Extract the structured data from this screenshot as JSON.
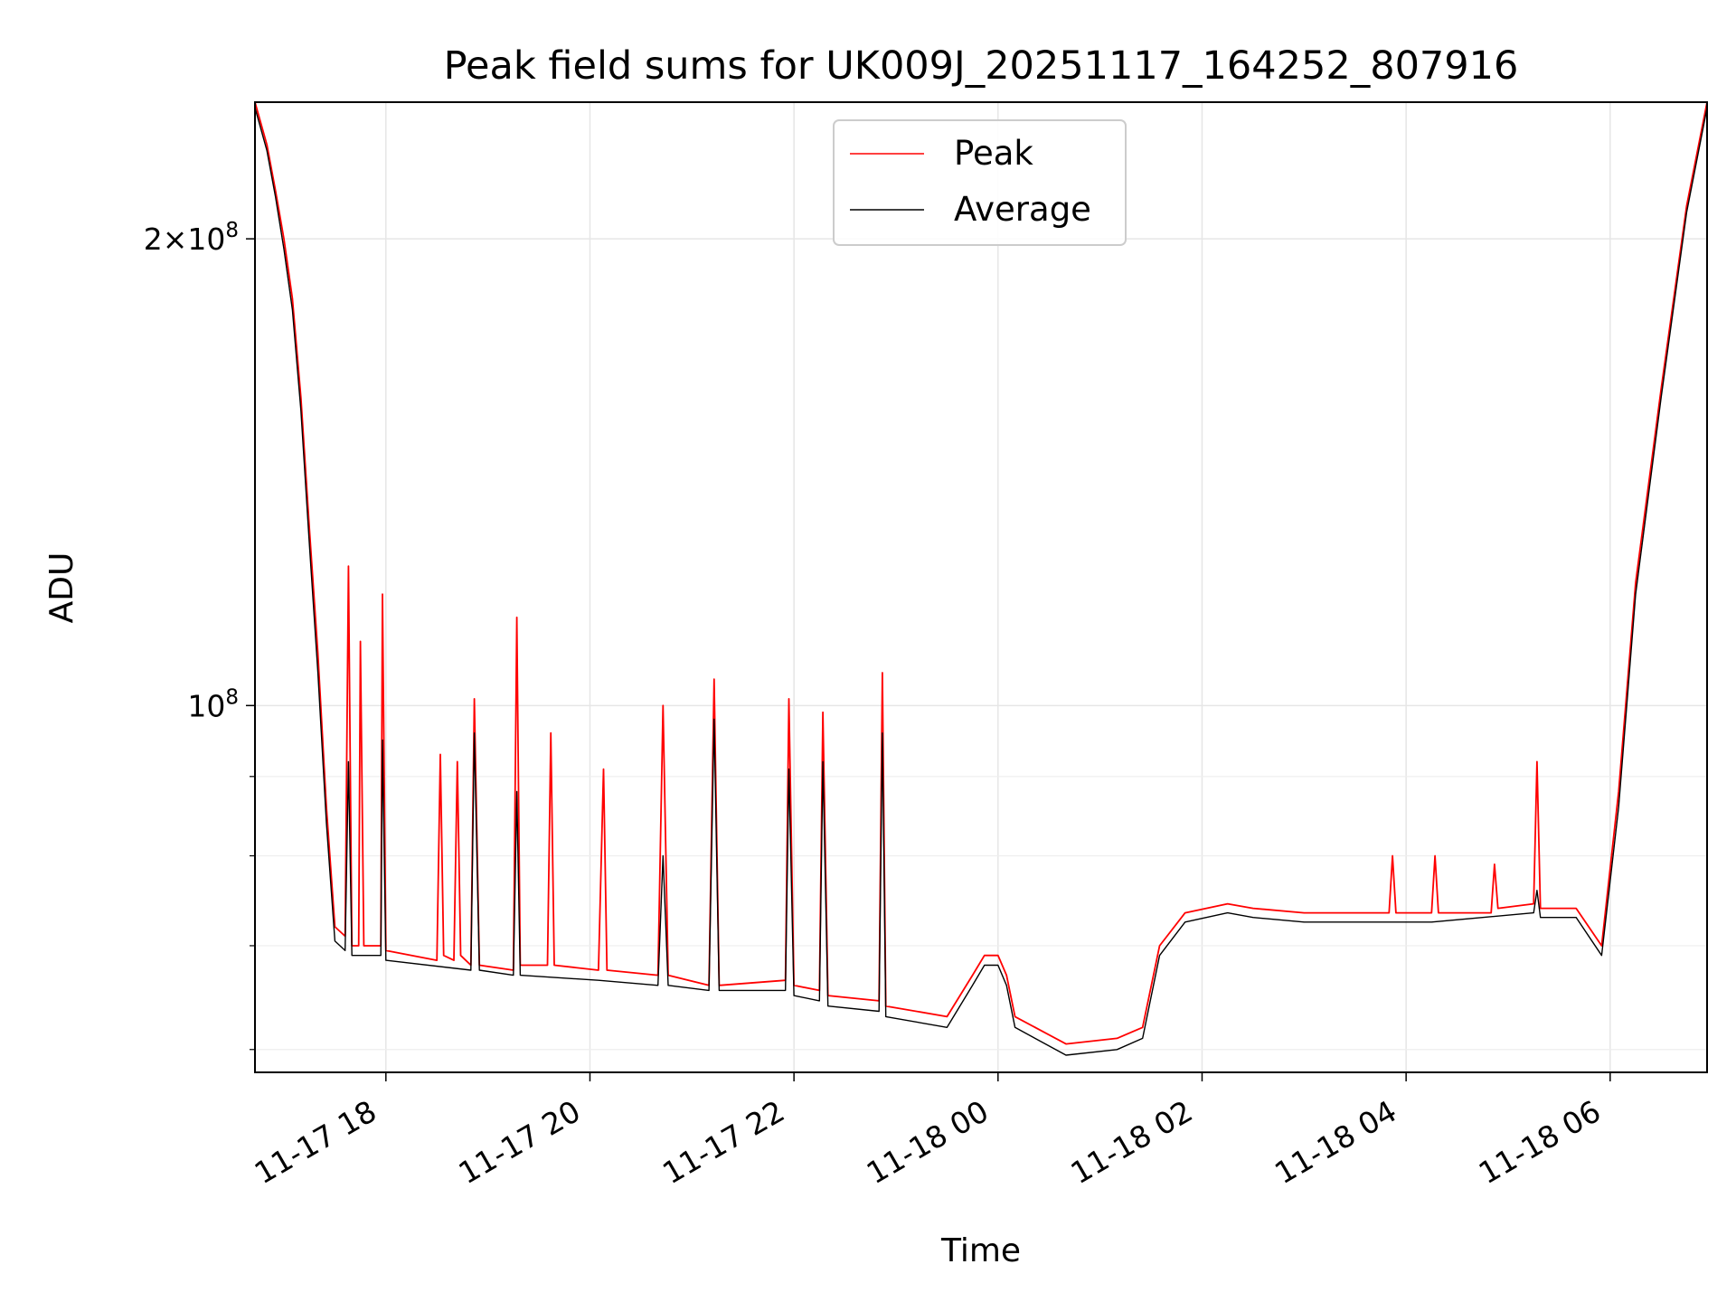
{
  "chart_data": {
    "type": "line",
    "title": "Peak field sums for UK009J_20251117_164252_807916",
    "xlabel": "Time",
    "ylabel": "ADU",
    "yscale": "log",
    "xlim": [
      "2025-11-17 16:43",
      "2025-11-18 06:57"
    ],
    "ylim": [
      58000000,
      245000000
    ],
    "grid": true,
    "legend_position": "top-center",
    "x_ticks": [
      {
        "t": "2025-11-17 18:00",
        "label": "11-17 18"
      },
      {
        "t": "2025-11-17 20:00",
        "label": "11-17 20"
      },
      {
        "t": "2025-11-17 22:00",
        "label": "11-17 22"
      },
      {
        "t": "2025-11-18 00:00",
        "label": "11-18 00"
      },
      {
        "t": "2025-11-18 02:00",
        "label": "11-18 02"
      },
      {
        "t": "2025-11-18 04:00",
        "label": "11-18 04"
      },
      {
        "t": "2025-11-18 06:00",
        "label": "11-18 06"
      }
    ],
    "y_major_ticks": [
      {
        "value": 200000000,
        "mantissa": "2×10",
        "exp": "8"
      },
      {
        "value": 100000000,
        "mantissa": "10",
        "exp": "8"
      }
    ],
    "y_minor_ticks": [
      60000000,
      70000000,
      80000000,
      90000000
    ],
    "series": [
      {
        "name": "Peak",
        "color": "#ff0000",
        "points": [
          [
            "2025-11-17 16:43",
            245000000
          ],
          [
            "2025-11-17 16:50",
            230000000
          ],
          [
            "2025-11-17 16:55",
            215000000
          ],
          [
            "2025-11-17 17:00",
            200000000
          ],
          [
            "2025-11-17 17:05",
            183000000
          ],
          [
            "2025-11-17 17:10",
            158000000
          ],
          [
            "2025-11-17 17:15",
            130000000
          ],
          [
            "2025-11-17 17:20",
            108000000
          ],
          [
            "2025-11-17 17:25",
            86000000
          ],
          [
            "2025-11-17 17:30",
            72000000
          ],
          [
            "2025-11-17 17:36",
            71000000
          ],
          [
            "2025-11-17 17:38",
            123000000
          ],
          [
            "2025-11-17 17:40",
            70000000
          ],
          [
            "2025-11-17 17:44",
            70000000
          ],
          [
            "2025-11-17 17:45",
            110000000
          ],
          [
            "2025-11-17 17:47",
            70000000
          ],
          [
            "2025-11-17 17:57",
            70000000
          ],
          [
            "2025-11-17 17:58",
            118000000
          ],
          [
            "2025-11-17 18:00",
            69500000
          ],
          [
            "2025-11-17 18:30",
            68500000
          ],
          [
            "2025-11-17 18:32",
            93000000
          ],
          [
            "2025-11-17 18:34",
            69000000
          ],
          [
            "2025-11-17 18:40",
            68500000
          ],
          [
            "2025-11-17 18:42",
            92000000
          ],
          [
            "2025-11-17 18:44",
            69000000
          ],
          [
            "2025-11-17 18:50",
            68000000
          ],
          [
            "2025-11-17 18:52",
            101000000
          ],
          [
            "2025-11-17 18:55",
            68000000
          ],
          [
            "2025-11-17 19:15",
            67500000
          ],
          [
            "2025-11-17 19:17",
            114000000
          ],
          [
            "2025-11-17 19:19",
            68000000
          ],
          [
            "2025-11-17 19:35",
            68000000
          ],
          [
            "2025-11-17 19:37",
            96000000
          ],
          [
            "2025-11-17 19:39",
            68000000
          ],
          [
            "2025-11-17 20:05",
            67500000
          ],
          [
            "2025-11-17 20:08",
            91000000
          ],
          [
            "2025-11-17 20:10",
            67500000
          ],
          [
            "2025-11-17 20:40",
            67000000
          ],
          [
            "2025-11-17 20:43",
            100000000
          ],
          [
            "2025-11-17 20:46",
            67000000
          ],
          [
            "2025-11-17 21:10",
            66000000
          ],
          [
            "2025-11-17 21:13",
            104000000
          ],
          [
            "2025-11-17 21:16",
            66000000
          ],
          [
            "2025-11-17 21:55",
            66500000
          ],
          [
            "2025-11-17 21:57",
            101000000
          ],
          [
            "2025-11-17 22:00",
            66000000
          ],
          [
            "2025-11-17 22:15",
            65500000
          ],
          [
            "2025-11-17 22:17",
            99000000
          ],
          [
            "2025-11-17 22:20",
            65000000
          ],
          [
            "2025-11-17 22:50",
            64500000
          ],
          [
            "2025-11-17 22:52",
            105000000
          ],
          [
            "2025-11-17 22:54",
            64000000
          ],
          [
            "2025-11-17 23:30",
            63000000
          ],
          [
            "2025-11-17 23:45",
            67000000
          ],
          [
            "2025-11-17 23:52",
            69000000
          ],
          [
            "2025-11-18 00:00",
            69000000
          ],
          [
            "2025-11-18 00:05",
            67000000
          ],
          [
            "2025-11-18 00:10",
            63000000
          ],
          [
            "2025-11-18 00:40",
            60500000
          ],
          [
            "2025-11-18 01:10",
            61000000
          ],
          [
            "2025-11-18 01:25",
            62000000
          ],
          [
            "2025-11-18 01:35",
            70000000
          ],
          [
            "2025-11-18 01:50",
            73500000
          ],
          [
            "2025-11-18 02:15",
            74500000
          ],
          [
            "2025-11-18 02:30",
            74000000
          ],
          [
            "2025-11-18 03:00",
            73500000
          ],
          [
            "2025-11-18 03:50",
            73500000
          ],
          [
            "2025-11-18 03:52",
            80000000
          ],
          [
            "2025-11-18 03:54",
            73500000
          ],
          [
            "2025-11-18 04:15",
            73500000
          ],
          [
            "2025-11-18 04:17",
            80000000
          ],
          [
            "2025-11-18 04:19",
            73500000
          ],
          [
            "2025-11-18 04:50",
            73500000
          ],
          [
            "2025-11-18 04:52",
            79000000
          ],
          [
            "2025-11-18 04:54",
            74000000
          ],
          [
            "2025-11-18 05:15",
            74500000
          ],
          [
            "2025-11-18 05:17",
            92000000
          ],
          [
            "2025-11-18 05:19",
            74000000
          ],
          [
            "2025-11-18 05:40",
            74000000
          ],
          [
            "2025-11-18 05:55",
            70000000
          ],
          [
            "2025-11-18 06:05",
            88000000
          ],
          [
            "2025-11-18 06:15",
            120000000
          ],
          [
            "2025-11-18 06:30",
            160000000
          ],
          [
            "2025-11-18 06:45",
            210000000
          ],
          [
            "2025-11-18 06:57",
            245000000
          ]
        ]
      },
      {
        "name": "Average",
        "color": "#000000",
        "points": [
          [
            "2025-11-17 16:43",
            243000000
          ],
          [
            "2025-11-17 16:50",
            228000000
          ],
          [
            "2025-11-17 16:55",
            213000000
          ],
          [
            "2025-11-17 17:00",
            197000000
          ],
          [
            "2025-11-17 17:05",
            180000000
          ],
          [
            "2025-11-17 17:10",
            155000000
          ],
          [
            "2025-11-17 17:15",
            127000000
          ],
          [
            "2025-11-17 17:20",
            105000000
          ],
          [
            "2025-11-17 17:25",
            84000000
          ],
          [
            "2025-11-17 17:30",
            70500000
          ],
          [
            "2025-11-17 17:36",
            69500000
          ],
          [
            "2025-11-17 17:38",
            92000000
          ],
          [
            "2025-11-17 17:40",
            69000000
          ],
          [
            "2025-11-17 17:57",
            69000000
          ],
          [
            "2025-11-17 17:58",
            95000000
          ],
          [
            "2025-11-17 18:00",
            68500000
          ],
          [
            "2025-11-17 18:50",
            67500000
          ],
          [
            "2025-11-17 18:52",
            96000000
          ],
          [
            "2025-11-17 18:55",
            67500000
          ],
          [
            "2025-11-17 19:15",
            67000000
          ],
          [
            "2025-11-17 19:17",
            88000000
          ],
          [
            "2025-11-17 19:19",
            67000000
          ],
          [
            "2025-11-17 20:05",
            66500000
          ],
          [
            "2025-11-17 20:40",
            66000000
          ],
          [
            "2025-11-17 20:43",
            80000000
          ],
          [
            "2025-11-17 20:46",
            66000000
          ],
          [
            "2025-11-17 21:10",
            65500000
          ],
          [
            "2025-11-17 21:13",
            98000000
          ],
          [
            "2025-11-17 21:16",
            65500000
          ],
          [
            "2025-11-17 21:55",
            65500000
          ],
          [
            "2025-11-17 21:57",
            91000000
          ],
          [
            "2025-11-17 22:00",
            65000000
          ],
          [
            "2025-11-17 22:15",
            64500000
          ],
          [
            "2025-11-17 22:17",
            92000000
          ],
          [
            "2025-11-17 22:20",
            64000000
          ],
          [
            "2025-11-17 22:50",
            63500000
          ],
          [
            "2025-11-17 22:52",
            96000000
          ],
          [
            "2025-11-17 22:54",
            63000000
          ],
          [
            "2025-11-17 23:30",
            62000000
          ],
          [
            "2025-11-17 23:45",
            66000000
          ],
          [
            "2025-11-17 23:52",
            68000000
          ],
          [
            "2025-11-18 00:00",
            68000000
          ],
          [
            "2025-11-18 00:05",
            66000000
          ],
          [
            "2025-11-18 00:10",
            62000000
          ],
          [
            "2025-11-18 00:40",
            59500000
          ],
          [
            "2025-11-18 01:10",
            60000000
          ],
          [
            "2025-11-18 01:25",
            61000000
          ],
          [
            "2025-11-18 01:35",
            69000000
          ],
          [
            "2025-11-18 01:50",
            72500000
          ],
          [
            "2025-11-18 02:15",
            73500000
          ],
          [
            "2025-11-18 02:30",
            73000000
          ],
          [
            "2025-11-18 03:00",
            72500000
          ],
          [
            "2025-11-18 04:15",
            72500000
          ],
          [
            "2025-11-18 05:15",
            73500000
          ],
          [
            "2025-11-18 05:17",
            76000000
          ],
          [
            "2025-11-18 05:19",
            73000000
          ],
          [
            "2025-11-18 05:40",
            73000000
          ],
          [
            "2025-11-18 05:55",
            69000000
          ],
          [
            "2025-11-18 06:05",
            86000000
          ],
          [
            "2025-11-18 06:15",
            118000000
          ],
          [
            "2025-11-18 06:30",
            158000000
          ],
          [
            "2025-11-18 06:45",
            208000000
          ],
          [
            "2025-11-18 06:57",
            243000000
          ]
        ]
      }
    ]
  }
}
